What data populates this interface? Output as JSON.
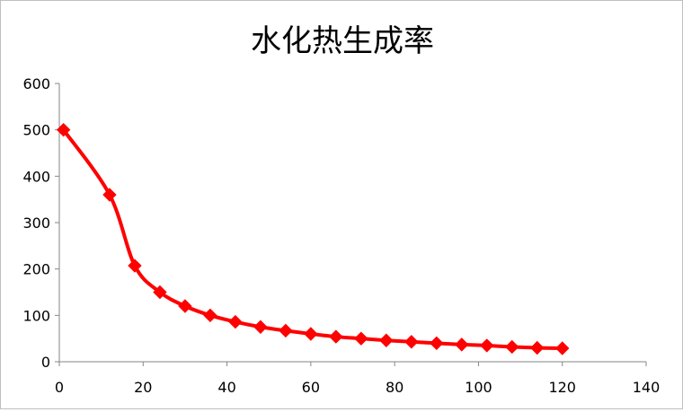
{
  "chart_data": {
    "type": "line",
    "title": "水化热生成率",
    "xlabel": "",
    "ylabel": "",
    "xlim": [
      0,
      140
    ],
    "ylim": [
      0,
      600
    ],
    "xticks": [
      0,
      20,
      40,
      60,
      80,
      100,
      120,
      140
    ],
    "yticks": [
      0,
      100,
      200,
      300,
      400,
      500,
      600
    ],
    "grid": false,
    "legend": "none",
    "smooth": true,
    "series": [
      {
        "color": "#ff0000",
        "marker": "diamond",
        "x": [
          1,
          12,
          18,
          24,
          30,
          36,
          42,
          48,
          54,
          60,
          66,
          72,
          78,
          84,
          90,
          96,
          102,
          108,
          114,
          120
        ],
        "y": [
          500,
          360,
          207,
          150,
          120,
          100,
          86,
          75,
          67,
          60,
          54,
          50,
          46,
          43,
          40,
          37,
          35,
          32,
          30,
          29
        ]
      }
    ]
  }
}
